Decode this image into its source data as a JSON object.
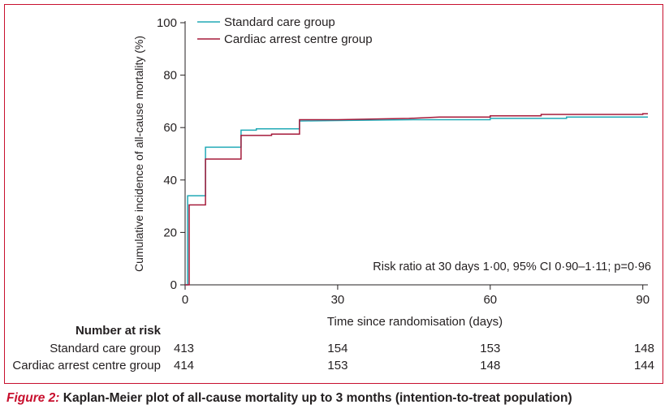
{
  "figure": {
    "label": "Figure 2:",
    "caption": "Kaplan-Meier plot of all-cause mortality up to 3 months (intention-to-treat population)"
  },
  "chart_data": {
    "type": "line",
    "step": true,
    "title": "",
    "xlabel": "Time since randomisation (days)",
    "ylabel": "Cumulative incidence of all-cause mortality (%)",
    "xlim": [
      0,
      91
    ],
    "ylim": [
      0,
      100
    ],
    "xticks": [
      0,
      30,
      60,
      90
    ],
    "yticks": [
      0,
      20,
      40,
      60,
      80,
      100
    ],
    "grid": false,
    "legend_position": "top-left",
    "annotation": "Risk ratio at 30 days 1·00, 95% CI 0·90–1·11; p=0·96",
    "series": [
      {
        "name": "Standard care group",
        "color": "#20a9b6",
        "points": [
          [
            0,
            0
          ],
          [
            0.5,
            0
          ],
          [
            0.5,
            34
          ],
          [
            4,
            34
          ],
          [
            4,
            52.5
          ],
          [
            11,
            52.5
          ],
          [
            11,
            59
          ],
          [
            14,
            59
          ],
          [
            14,
            59.5
          ],
          [
            22.5,
            59.5
          ],
          [
            22.5,
            62.5
          ],
          [
            30,
            62.7
          ],
          [
            45,
            63
          ],
          [
            60,
            63
          ],
          [
            60,
            63.5
          ],
          [
            75,
            63.5
          ],
          [
            75,
            64
          ],
          [
            91,
            64
          ]
        ]
      },
      {
        "name": "Cardiac arrest centre group",
        "color": "#a51a3a",
        "points": [
          [
            0,
            0
          ],
          [
            0.8,
            0
          ],
          [
            0.8,
            30.5
          ],
          [
            4,
            30.5
          ],
          [
            4,
            48
          ],
          [
            11,
            48
          ],
          [
            11,
            57
          ],
          [
            17,
            57
          ],
          [
            17,
            57.5
          ],
          [
            22.5,
            57.5
          ],
          [
            22.5,
            63
          ],
          [
            30,
            63
          ],
          [
            44,
            63.5
          ],
          [
            50,
            64
          ],
          [
            60,
            64
          ],
          [
            60,
            64.5
          ],
          [
            70,
            64.5
          ],
          [
            70,
            65
          ],
          [
            90,
            65
          ],
          [
            90,
            65.3
          ],
          [
            91,
            65.3
          ]
        ]
      }
    ],
    "risk_table": {
      "header": "Number at risk",
      "timepoints": [
        0,
        30,
        60,
        90
      ],
      "rows": [
        {
          "label": "Standard care group",
          "values": [
            "413",
            "154",
            "153",
            "148"
          ]
        },
        {
          "label": "Cardiac arrest centre group",
          "values": [
            "414",
            "153",
            "148",
            "144"
          ]
        }
      ]
    }
  }
}
